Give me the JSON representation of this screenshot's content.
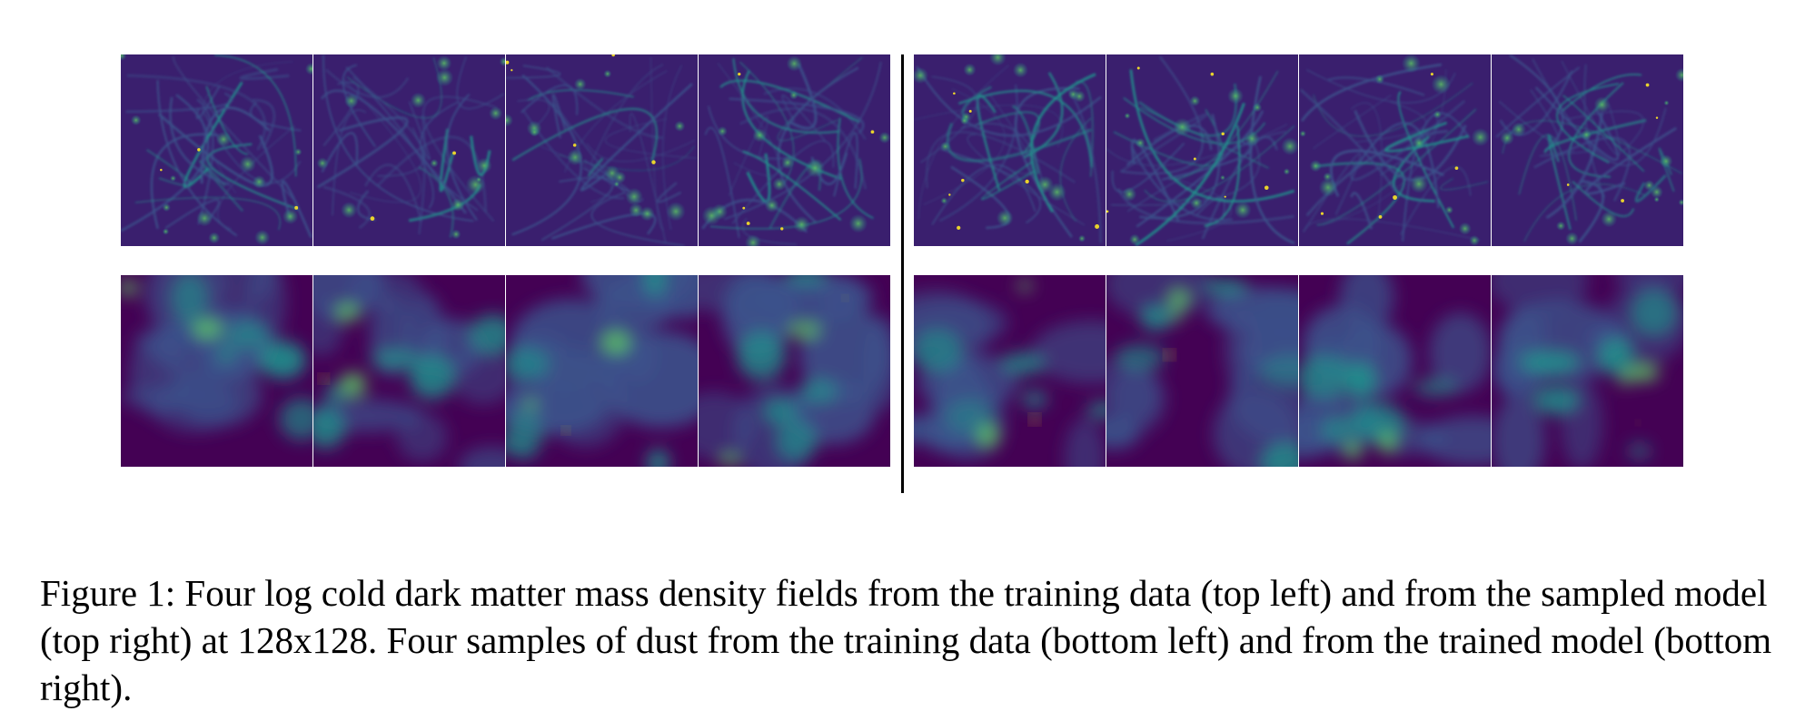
{
  "figure": {
    "caption": "Figure 1: Four log cold dark matter mass density fields from the training data (top left) and from the sampled model (top right) at 128x128. Four samples of dust from the training data (bottom left) and from the trained model (bottom right).",
    "colormap": [
      "#440154",
      "#3b528b",
      "#21918c",
      "#5ec962",
      "#fde725"
    ],
    "panels": [
      {
        "name": "cdm-training-data",
        "kind": "cdm",
        "tiles": 4
      },
      {
        "name": "cdm-sampled-model",
        "kind": "cdm",
        "tiles": 4
      },
      {
        "name": "dust-training-data",
        "kind": "dust",
        "tiles": 4
      },
      {
        "name": "dust-trained-model",
        "kind": "dust",
        "tiles": 4
      }
    ]
  }
}
